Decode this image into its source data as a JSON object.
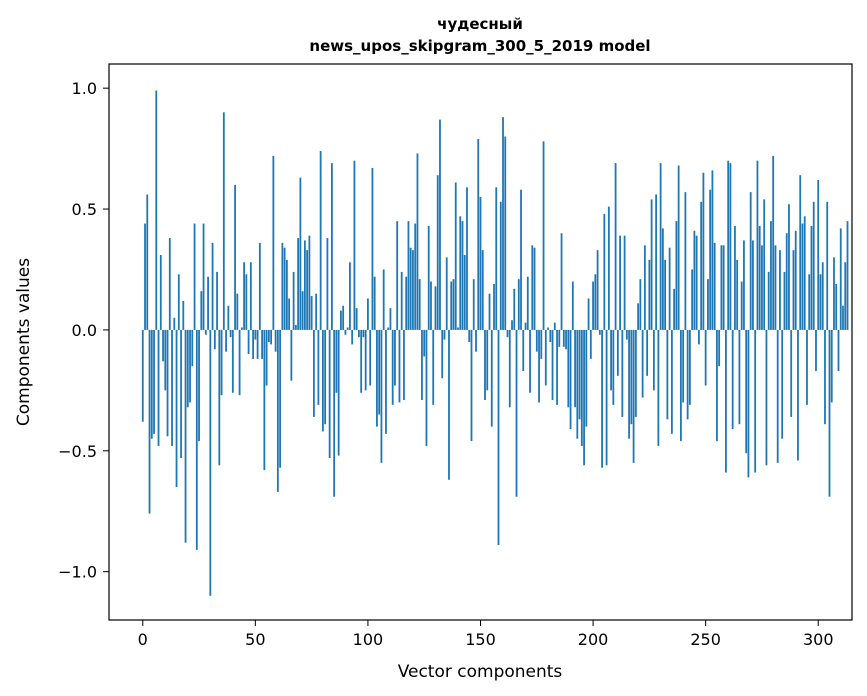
{
  "chart_data": {
    "type": "bar",
    "title": "чудесный",
    "subtitle": "news_upos_skipgram_300_5_2019 model",
    "xlabel": "Vector components",
    "ylabel": "Components values",
    "xlim": [
      -15,
      315
    ],
    "ylim": [
      -1.2,
      1.1
    ],
    "xticks": [
      0,
      50,
      100,
      150,
      200,
      250,
      300
    ],
    "yticks": [
      -1.0,
      -0.5,
      0.0,
      0.5,
      1.0
    ],
    "ytick_labels": [
      "−1.0",
      "−0.5",
      "0.0",
      "0.5",
      "1.0"
    ],
    "grid": false,
    "legend": "none",
    "bar_color": "#1f77b4",
    "values": [
      -0.38,
      0.44,
      0.56,
      -0.76,
      -0.45,
      -0.43,
      0.99,
      -0.48,
      0.31,
      -0.13,
      -0.25,
      -0.44,
      0.38,
      -0.48,
      0.05,
      -0.65,
      0.23,
      -0.53,
      0.12,
      -0.88,
      -0.32,
      -0.3,
      -0.15,
      0.44,
      -0.91,
      -0.46,
      0.16,
      0.44,
      -0.02,
      0.22,
      -1.1,
      0.36,
      -0.08,
      0.24,
      -0.56,
      -0.27,
      0.9,
      -0.09,
      0.1,
      -0.03,
      -0.26,
      0.6,
      0.15,
      -0.27,
      0.01,
      0.28,
      0.23,
      -0.1,
      0.28,
      -0.12,
      -0.04,
      -0.12,
      0.36,
      -0.12,
      -0.58,
      -0.23,
      -0.05,
      -0.06,
      0.72,
      -0.09,
      -0.67,
      -0.57,
      0.36,
      0.34,
      0.29,
      0.13,
      -0.21,
      0.24,
      0.02,
      0.38,
      0.63,
      0.16,
      0.37,
      0.33,
      0.39,
      0.14,
      -0.36,
      0.15,
      -0.31,
      0.74,
      -0.42,
      -0.39,
      0.38,
      -0.53,
      0.69,
      -0.69,
      -0.26,
      -0.52,
      0.08,
      0.1,
      -0.02,
      0.01,
      0.28,
      -0.06,
      0.7,
      0.09,
      -0.03,
      -0.26,
      -0.03,
      -0.25,
      0.13,
      -0.23,
      0.67,
      0.22,
      -0.4,
      -0.35,
      -0.55,
      0.25,
      -0.43,
      0.01,
      0.09,
      -0.31,
      -0.23,
      0.45,
      -0.3,
      0.24,
      -0.29,
      0.22,
      0.45,
      0.34,
      0.33,
      0.44,
      0.73,
      0.21,
      -0.29,
      -0.11,
      -0.48,
      0.43,
      0.2,
      -0.31,
      0.18,
      0.64,
      0.87,
      -0.2,
      -0.04,
      0.3,
      -0.62,
      0.2,
      0.21,
      0.61,
      0.01,
      0.47,
      0.45,
      0.31,
      0.59,
      -0.05,
      -0.46,
      0.21,
      -0.09,
      0.79,
      0.55,
      0.33,
      -0.29,
      -0.25,
      0.15,
      -0.4,
      0.19,
      0.59,
      -0.89,
      0.53,
      0.88,
      0.8,
      -0.03,
      -0.32,
      0.04,
      0.17,
      -0.69,
      0.21,
      0.58,
      -0.17,
      0.03,
      0.22,
      -0.26,
      0.35,
      0.34,
      -0.09,
      -0.3,
      -0.12,
      0.78,
      -0.23,
      0.01,
      -0.05,
      -0.29,
      0.03,
      -0.31,
      -0.07,
      0.4,
      -0.07,
      -0.08,
      -0.32,
      -0.41,
      0.2,
      -0.32,
      -0.45,
      -0.37,
      -0.48,
      -0.56,
      -0.4,
      0.13,
      -0.12,
      0.2,
      0.23,
      0.33,
      -0.02,
      -0.57,
      0.48,
      -0.56,
      0.51,
      -0.25,
      -0.31,
      0.69,
      -0.19,
      0.39,
      -0.36,
      0.39,
      -0.04,
      -0.45,
      -0.39,
      -0.55,
      -0.36,
      0.11,
      0.21,
      -0.28,
      0.35,
      -0.19,
      0.29,
      0.54,
      -0.25,
      0.56,
      -0.48,
      0.69,
      0.42,
      0.29,
      -0.37,
      0.34,
      -0.43,
      0.17,
      0.45,
      0.68,
      -0.46,
      -0.3,
      0.57,
      -0.37,
      -0.31,
      0.25,
      0.41,
      0.39,
      -0.06,
      0.53,
      0.65,
      -0.23,
      0.21,
      0.58,
      0.66,
      0.36,
      -0.46,
      -0.15,
      0.35,
      0.35,
      -0.59,
      0.7,
      0.69,
      -0.41,
      0.43,
      0.29,
      -0.39,
      0.2,
      0.37,
      -0.51,
      -0.61,
      0.57,
      0.37,
      -0.59,
      0.7,
      0.43,
      0.35,
      0.54,
      -0.56,
      0.24,
      0.45,
      0.72,
      0.35,
      -0.55,
      0.33,
      -0.45,
      0.24,
      0.4,
      0.52,
      -0.36,
      0.33,
      0.41,
      -0.54,
      0.64,
      0.44,
      0.47,
      -0.31,
      0.23,
      0.43,
      0.53,
      -0.17,
      0.62,
      0.23,
      0.28,
      -0.39,
      0.53,
      -0.69,
      -0.3,
      0.3,
      0.19,
      -0.17,
      0.42,
      0.1,
      0.28,
      0.45
    ]
  }
}
